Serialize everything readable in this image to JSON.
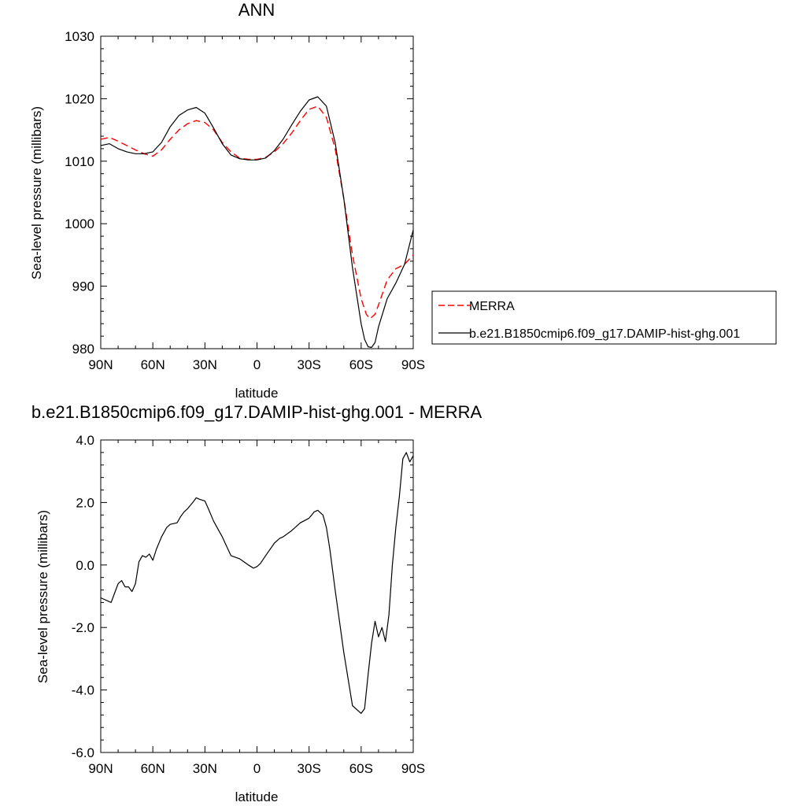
{
  "colors": {
    "merra": "#ff0000",
    "model": "#000000",
    "axis": "#000000",
    "background": "#ffffff"
  },
  "chart_data": [
    {
      "type": "line",
      "title": "ANN",
      "xlabel": "latitude",
      "ylabel": "Sea-level pressure (millibars)",
      "xlim": [
        90,
        -90
      ],
      "ylim": [
        980,
        1030
      ],
      "xticks": [
        90,
        60,
        30,
        0,
        -30,
        -60,
        -90
      ],
      "xtick_labels": [
        "90N",
        "60N",
        "30N",
        "0",
        "30S",
        "60S",
        "90S"
      ],
      "yticks": [
        980,
        990,
        1000,
        1010,
        1020,
        1030
      ],
      "ytick_labels": [
        "980",
        "990",
        "1000",
        "1010",
        "1020",
        "1030"
      ],
      "grid": false,
      "legend_placement": "right",
      "series": [
        {
          "name": "MERRA",
          "style": "dashed",
          "color": "#ff0000",
          "x": [
            90,
            85,
            80,
            75,
            70,
            65,
            60,
            55,
            50,
            45,
            40,
            35,
            30,
            25,
            20,
            15,
            10,
            5,
            0,
            -5,
            -10,
            -15,
            -20,
            -25,
            -30,
            -35,
            -40,
            -45,
            -50,
            -55,
            -60,
            -63,
            -65,
            -68,
            -70,
            -75,
            -80,
            -85,
            -90
          ],
          "y": [
            1013.5,
            1013.8,
            1013.2,
            1012.5,
            1011.8,
            1011.2,
            1010.8,
            1011.8,
            1013.5,
            1015.0,
            1016.0,
            1016.5,
            1016.2,
            1015.0,
            1013.0,
            1011.5,
            1010.5,
            1010.3,
            1010.3,
            1010.6,
            1011.5,
            1012.8,
            1014.5,
            1016.5,
            1018.3,
            1018.8,
            1017.0,
            1012.0,
            1004.0,
            995.0,
            988.0,
            985.5,
            984.8,
            985.5,
            987.0,
            991.0,
            992.8,
            993.5,
            995.0
          ]
        },
        {
          "name": "b.e21.B1850cmip6.f09_g17.DAMIP-hist-ghg.001",
          "style": "solid",
          "color": "#000000",
          "x": [
            90,
            85,
            80,
            75,
            70,
            65,
            60,
            55,
            50,
            45,
            40,
            35,
            30,
            25,
            20,
            15,
            10,
            5,
            0,
            -5,
            -10,
            -15,
            -20,
            -25,
            -30,
            -35,
            -40,
            -45,
            -50,
            -55,
            -60,
            -62,
            -64,
            -66,
            -68,
            -70,
            -75,
            -80,
            -85,
            -90
          ],
          "y": [
            1012.5,
            1012.8,
            1012.0,
            1011.5,
            1011.2,
            1011.2,
            1011.5,
            1013.0,
            1015.5,
            1017.3,
            1018.2,
            1018.6,
            1017.7,
            1015.3,
            1012.8,
            1011.0,
            1010.4,
            1010.2,
            1010.2,
            1010.5,
            1011.7,
            1013.5,
            1015.8,
            1018.0,
            1019.8,
            1020.3,
            1018.8,
            1013.0,
            1004.0,
            993.0,
            984.0,
            981.5,
            980.3,
            980.2,
            981.0,
            983.5,
            988.0,
            990.5,
            993.5,
            999.0
          ]
        }
      ]
    },
    {
      "type": "line",
      "title": "b.e21.B1850cmip6.f09_g17.DAMIP-hist-ghg.001 - MERRA",
      "xlabel": "latitude",
      "ylabel": "Sea-level pressure (millibars)",
      "xlim": [
        90,
        -90
      ],
      "ylim": [
        -6.0,
        4.0
      ],
      "xticks": [
        90,
        60,
        30,
        0,
        -30,
        -60,
        -90
      ],
      "xtick_labels": [
        "90N",
        "60N",
        "30N",
        "0",
        "30S",
        "60S",
        "90S"
      ],
      "yticks": [
        -6,
        -4,
        -2,
        0,
        2,
        4
      ],
      "ytick_labels": [
        "-6.0",
        "-4.0",
        "-2.0",
        "0.0",
        "2.0",
        "4.0"
      ],
      "grid": false,
      "series": [
        {
          "style": "solid",
          "color": "#000000",
          "x": [
            90,
            88,
            84,
            82,
            80,
            78,
            76,
            74,
            72,
            70,
            68,
            66,
            64,
            62,
            60,
            58,
            55,
            52,
            50,
            46,
            44,
            42,
            40,
            37,
            35,
            33,
            30,
            28,
            25,
            20,
            15,
            10,
            5,
            2,
            0,
            -2,
            -5,
            -10,
            -13,
            -15,
            -20,
            -25,
            -30,
            -33,
            -35,
            -38,
            -40,
            -42,
            -45,
            -50,
            -55,
            -60,
            -62,
            -64,
            -66,
            -68,
            -70,
            -72,
            -74,
            -76,
            -78,
            -80,
            -82,
            -84,
            -86,
            -88,
            -90
          ],
          "y": [
            -1.05,
            -1.1,
            -1.2,
            -0.9,
            -0.6,
            -0.5,
            -0.7,
            -0.7,
            -0.85,
            -0.6,
            0.1,
            0.3,
            0.25,
            0.35,
            0.15,
            0.5,
            0.9,
            1.2,
            1.3,
            1.35,
            1.55,
            1.7,
            1.8,
            2.0,
            2.15,
            2.1,
            2.05,
            1.8,
            1.4,
            0.9,
            0.3,
            0.2,
            0.0,
            -0.1,
            -0.05,
            0.05,
            0.3,
            0.7,
            0.85,
            0.9,
            1.1,
            1.35,
            1.5,
            1.7,
            1.75,
            1.6,
            1.2,
            0.5,
            -0.8,
            -2.8,
            -4.5,
            -4.75,
            -4.6,
            -3.5,
            -2.5,
            -1.8,
            -2.3,
            -2.0,
            -2.45,
            -1.6,
            0.0,
            1.2,
            2.2,
            3.4,
            3.6,
            3.3,
            3.5
          ]
        }
      ]
    }
  ]
}
